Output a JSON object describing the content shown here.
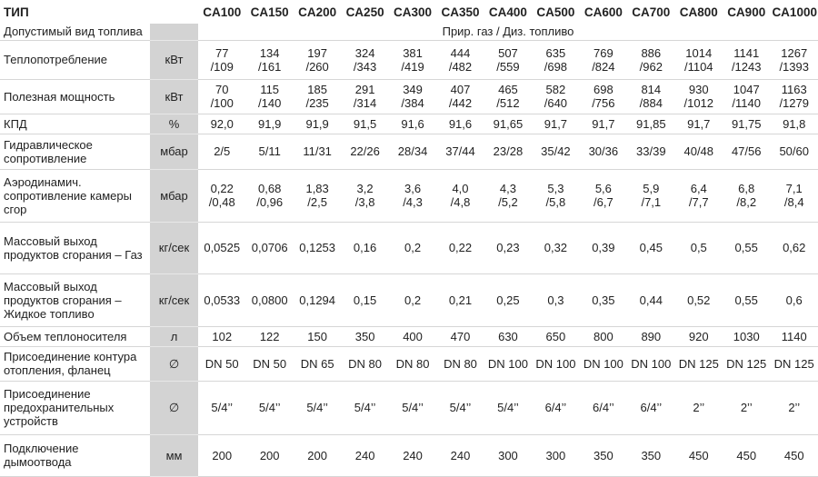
{
  "header": {
    "title": "ТИП",
    "models": [
      "CA100",
      "CA150",
      "CA200",
      "CA250",
      "CA300",
      "CA350",
      "CA400",
      "CA500",
      "CA600",
      "CA700",
      "CA800",
      "CA900",
      "CA1000"
    ]
  },
  "rows": [
    {
      "label": "Допустимый вид топлива",
      "values": [
        "Прир. газ / Диз. топливо"
      ]
    },
    {
      "label": "Теплопотребление",
      "unit": "кВт",
      "values": [
        "77\n/109",
        "134\n/161",
        "197\n/260",
        "324\n/343",
        "381\n/419",
        "444\n/482",
        "507\n/559",
        "635\n/698",
        "769\n/824",
        "886\n/962",
        "1014\n/1104",
        "1141\n/1243",
        "1267\n/1393"
      ]
    },
    {
      "label": "Полезная мощность",
      "unit": "кВт",
      "values": [
        "70\n/100",
        "115\n/140",
        "185\n/235",
        "291\n/314",
        "349\n/384",
        "407\n/442",
        "465\n/512",
        "582\n/640",
        "698\n/756",
        "814\n/884",
        "930\n/1012",
        "1047\n/1140",
        "1163\n/1279"
      ]
    },
    {
      "label": "КПД",
      "unit": "%",
      "values": [
        "92,0",
        "91,9",
        "91,9",
        "91,5",
        "91,6",
        "91,6",
        "91,65",
        "91,7",
        "91,7",
        "91,85",
        "91,7",
        "91,75",
        "91,8"
      ]
    },
    {
      "label": "Гидравлическое сопротивление",
      "unit": "мбар",
      "values": [
        "2/5",
        "5/11",
        "11/31",
        "22/26",
        "28/34",
        "37/44",
        "23/28",
        "35/42",
        "30/36",
        "33/39",
        "40/48",
        "47/56",
        "50/60"
      ]
    },
    {
      "label": "Аэродинамич. сопротивление камеры сгор",
      "unit": "мбар",
      "values": [
        "0,22\n/0,48",
        "0,68\n/0,96",
        "1,83\n/2,5",
        "3,2\n/3,8",
        "3,6\n/4,3",
        "4,0\n/4,8",
        "4,3\n/5,2",
        "5,3\n/5,8",
        "5,6\n/6,7",
        "5,9\n/7,1",
        "6,4\n/7,7",
        "6,8\n/8,2",
        "7,1\n/8,4"
      ]
    },
    {
      "label": "Массовый выход продуктов сгорания – Газ",
      "unit": "кг/сек",
      "values": [
        "0,0525",
        "0,0706",
        "0,1253",
        "0,16",
        "0,2",
        "0,22",
        "0,23",
        "0,32",
        "0,39",
        "0,45",
        "0,5",
        "0,55",
        "0,62"
      ]
    },
    {
      "label": "Массовый выход продуктов сгорания – Жидкое топливо",
      "unit": "кг/сек",
      "values": [
        "0,0533",
        "0,0800",
        "0,1294",
        "0,15",
        "0,2",
        "0,21",
        "0,25",
        "0,3",
        "0,35",
        "0,44",
        "0,52",
        "0,55",
        "0,6"
      ]
    },
    {
      "label": "Объем теплоносителя",
      "unit": "л",
      "values": [
        "102",
        "122",
        "150",
        "350",
        "400",
        "470",
        "630",
        "650",
        "800",
        "890",
        "920",
        "1030",
        "1140"
      ]
    },
    {
      "label": "Присоединение контура отопления, фланец",
      "unit": "∅",
      "values": [
        "DN 50",
        "DN 50",
        "DN 65",
        "DN 80",
        "DN 80",
        "DN 80",
        "DN 100",
        "DN 100",
        "DN 100",
        "DN 100",
        "DN 125",
        "DN 125",
        "DN 125"
      ]
    },
    {
      "label": "Присоединение предохранительных устройств",
      "unit": "∅",
      "values": [
        "5/4’’",
        "5/4’’",
        "5/4’’",
        "5/4’’",
        "5/4’’",
        "5/4’’",
        "5/4’’",
        "6/4’’",
        "6/4’’",
        "6/4’’",
        "2’’",
        "2’’",
        "2’’"
      ]
    },
    {
      "label": "Подключение дымоотвода",
      "unit": "мм",
      "values": [
        "200",
        "200",
        "200",
        "240",
        "240",
        "240",
        "300",
        "300",
        "350",
        "350",
        "450",
        "450",
        "450"
      ]
    }
  ]
}
